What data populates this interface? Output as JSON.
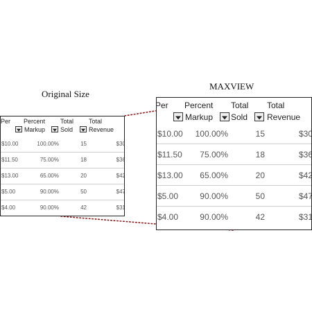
{
  "captions": {
    "original": "Original Size",
    "zoomed": "MAXVIEW"
  },
  "table": {
    "headers": [
      {
        "top": "Per",
        "bottom": "",
        "has_dropdown": false
      },
      {
        "top": "Percent",
        "bottom": "Markup",
        "has_dropdown": true
      },
      {
        "top": "Total",
        "bottom": "Sold",
        "has_dropdown": true
      },
      {
        "top": "Total",
        "bottom": "Revenue",
        "has_dropdown": true
      }
    ],
    "rows": [
      [
        "$10.00",
        "100.00%",
        "15",
        "$30"
      ],
      [
        "$11.50",
        "75.00%",
        "18",
        "$36"
      ],
      [
        "$13.00",
        "65.00%",
        "20",
        "$42"
      ],
      [
        "$5.00",
        "90.00%",
        "50",
        "$47"
      ],
      [
        "$4.00",
        "90.00%",
        "42",
        "$31"
      ]
    ]
  },
  "colors": {
    "border": "#222222",
    "separator": "#cfcfcf",
    "connector": "#8b1a1a",
    "cell_text": "#555555"
  },
  "icons": {
    "dropdown": "chevron-down-icon"
  }
}
